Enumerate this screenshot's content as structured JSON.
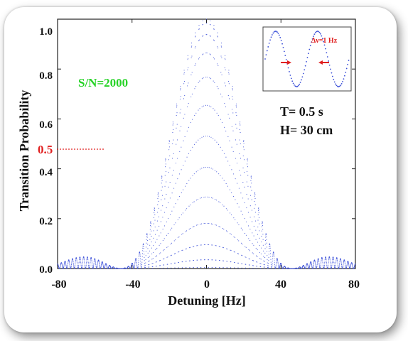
{
  "chart_data": {
    "type": "scatter",
    "xlabel": "Detuning [Hz]",
    "ylabel": "Transition Probability",
    "xlim": [
      -80,
      80
    ],
    "ylim": [
      0,
      1.0
    ],
    "x_ticks": [
      "-80",
      "-40",
      "0",
      "40",
      "80"
    ],
    "y_ticks": [
      "0.0",
      "0.2",
      "0.4",
      "0.6",
      "0.8",
      "1.0"
    ],
    "grid": false,
    "marker_color": "#3b4fd8",
    "fringe_period_hz": 2,
    "envelope_width_hz": 46,
    "series": [
      {
        "description": "Ramsey fringe dots: P(d) = sinc^2-type envelope times cos^2(pi*d/2)",
        "x_range": [
          -80,
          80
        ],
        "x_step": 0.08
      }
    ],
    "annotations": {
      "snr": "S/N=2000",
      "half_label": "0.5",
      "half_value": 0.5,
      "params": [
        "T= 0.5 s",
        "H= 30 cm"
      ],
      "inset_label": "Δν=1 Hz"
    }
  },
  "colors": {
    "accent_green": "#27d327",
    "accent_red": "#e02020",
    "dots": "#3b4fd8"
  }
}
